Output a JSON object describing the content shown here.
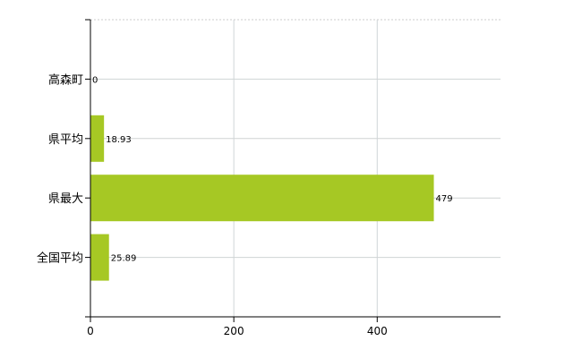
{
  "chart_data": {
    "type": "bar",
    "orientation": "horizontal",
    "categories": [
      "高森町",
      "県平均",
      "県最大",
      "全国平均"
    ],
    "values": [
      0,
      18.93,
      479,
      25.89
    ],
    "data_labels": [
      "0",
      "18.93",
      "479",
      "25.89"
    ],
    "xticks": [
      "0",
      "200",
      "400"
    ],
    "xlim": [
      0,
      572
    ],
    "grid": true,
    "bar_color": "#a6c824",
    "title": "",
    "xlabel": "",
    "ylabel": ""
  }
}
